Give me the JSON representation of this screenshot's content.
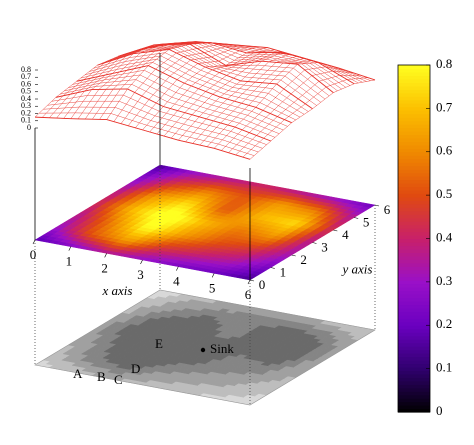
{
  "chart_data": {
    "type": "surface",
    "x_label": "x axis",
    "y_label": "y axis",
    "xlim": [
      0,
      6
    ],
    "ylim": [
      0,
      6
    ],
    "zlim": [
      0,
      0.8
    ],
    "xticks": [
      0,
      1,
      2,
      3,
      4,
      5,
      6
    ],
    "yticks": [
      0,
      1,
      2,
      3,
      4,
      5,
      6
    ],
    "zticks": [
      0,
      0.1,
      0.2,
      0.3,
      0.4,
      0.5,
      0.6,
      0.7,
      0.8
    ],
    "colorbar_ticks": [
      0,
      0.1,
      0.2,
      0.3,
      0.4,
      0.5,
      0.6,
      0.7,
      0.8
    ],
    "colormap": [
      "#000000",
      "#30006e",
      "#6a00c0",
      "#9a10c8",
      "#c8206a",
      "#e04a10",
      "#f08a00",
      "#fcc000",
      "#ffff20"
    ],
    "mesh_color": "#e8342c",
    "z": [
      [
        0.15,
        0.22,
        0.3,
        0.25,
        0.2,
        0.18,
        0.12
      ],
      [
        0.25,
        0.45,
        0.55,
        0.4,
        0.35,
        0.3,
        0.2
      ],
      [
        0.3,
        0.5,
        0.7,
        0.55,
        0.45,
        0.4,
        0.28
      ],
      [
        0.35,
        0.6,
        0.75,
        0.6,
        0.5,
        0.55,
        0.3
      ],
      [
        0.3,
        0.55,
        0.65,
        0.45,
        0.6,
        0.65,
        0.35
      ],
      [
        0.22,
        0.4,
        0.5,
        0.45,
        0.55,
        0.5,
        0.3
      ],
      [
        0.12,
        0.25,
        0.3,
        0.35,
        0.3,
        0.25,
        0.18
      ]
    ],
    "annotations": [
      "A",
      "B",
      "C",
      "D",
      "E",
      "Sink"
    ]
  }
}
